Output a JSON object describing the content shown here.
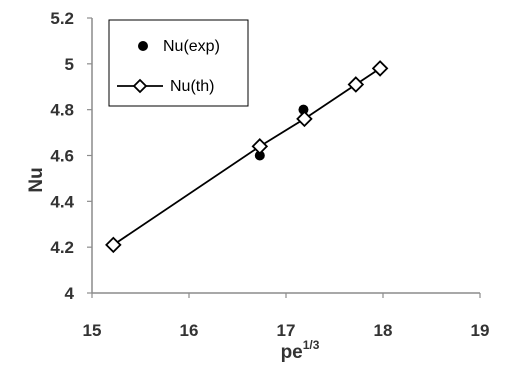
{
  "chart_data": {
    "type": "scatter",
    "xlabel": "pe",
    "xlabel_superscript": "1/3",
    "ylabel": "Nu",
    "xlim": [
      15,
      19
    ],
    "ylim": [
      4,
      5.2
    ],
    "x_ticks": [
      "15",
      "16",
      "17",
      "18",
      "19"
    ],
    "y_ticks": [
      "4",
      "4.2",
      "4.4",
      "4.6",
      "4.8",
      "5",
      "5.2"
    ],
    "grid": false,
    "legend_position": "top-left",
    "series": [
      {
        "name": "Nu(exp)",
        "marker": "filled-circle",
        "line": false,
        "color": "#000000",
        "x": [
          15.22,
          16.73,
          17.18,
          17.72,
          17.97
        ],
        "y": [
          4.21,
          4.6,
          4.8,
          4.91,
          4.98
        ]
      },
      {
        "name": "Nu(th)",
        "marker": "hollow-diamond",
        "line": true,
        "color": "#000000",
        "x": [
          15.22,
          16.73,
          17.19,
          17.72,
          17.97
        ],
        "y": [
          4.21,
          4.64,
          4.76,
          4.91,
          4.98
        ]
      }
    ]
  }
}
